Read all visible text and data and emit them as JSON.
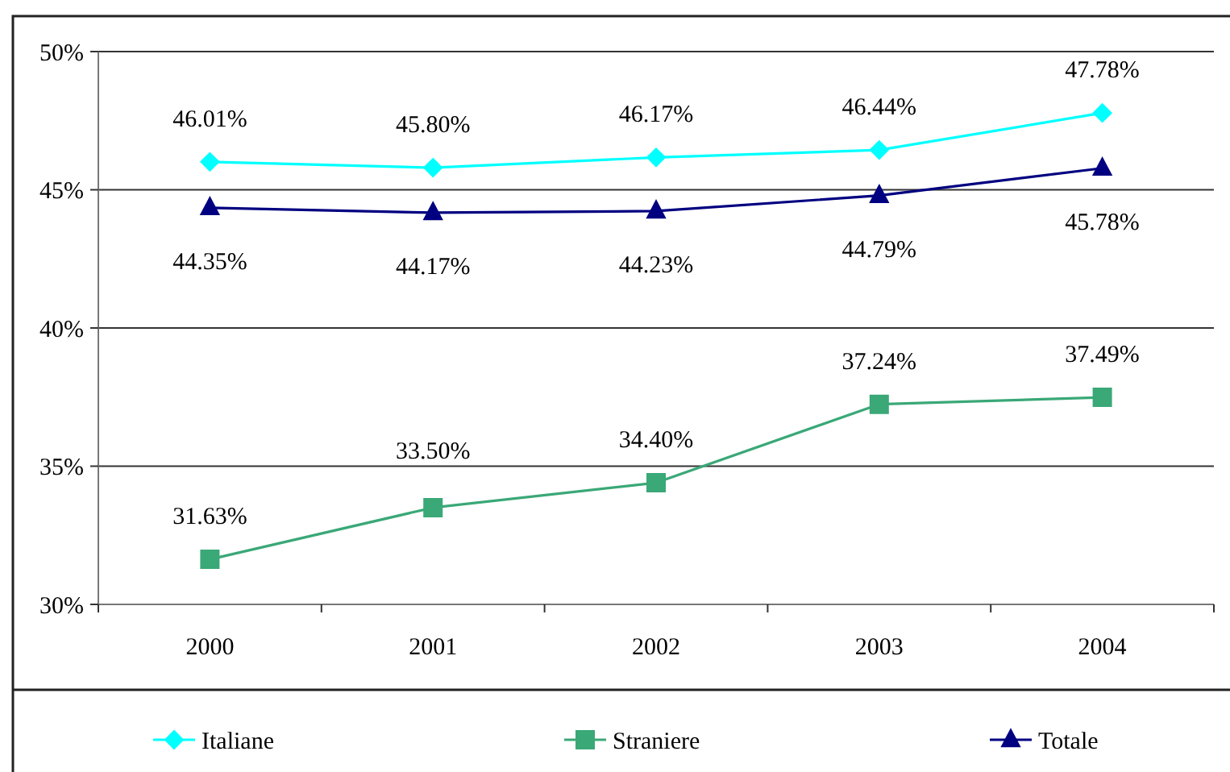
{
  "chart_data": {
    "type": "line",
    "categories": [
      "2000",
      "2001",
      "2002",
      "2003",
      "2004"
    ],
    "series": [
      {
        "name": "Italiane",
        "color": "#00ffff",
        "marker": "diamond",
        "values": [
          46.01,
          45.8,
          46.17,
          46.44,
          47.78
        ],
        "value_labels": [
          "46.01%",
          "45.80%",
          "46.17%",
          "46.44%",
          "47.78%"
        ]
      },
      {
        "name": "Straniere",
        "color": "#3aa877",
        "marker": "square",
        "values": [
          31.63,
          33.5,
          34.4,
          37.24,
          37.49
        ],
        "value_labels": [
          "31.63%",
          "33.50%",
          "34.40%",
          "37.24%",
          "37.49%"
        ]
      },
      {
        "name": "Totale",
        "color": "#000080",
        "marker": "triangle",
        "values": [
          44.35,
          44.17,
          44.23,
          44.79,
          45.78
        ],
        "value_labels": [
          "44.35%",
          "44.17%",
          "44.23%",
          "44.79%",
          "45.78%"
        ]
      }
    ],
    "ylim": [
      30,
      50
    ],
    "yticks": [
      {
        "value": 30,
        "label": "30%"
      },
      {
        "value": 35,
        "label": "35%"
      },
      {
        "value": 40,
        "label": "40%"
      },
      {
        "value": 45,
        "label": "45%"
      },
      {
        "value": 50,
        "label": "50%"
      }
    ],
    "grid": "y",
    "legend": "bottom",
    "line_style": "solid"
  }
}
